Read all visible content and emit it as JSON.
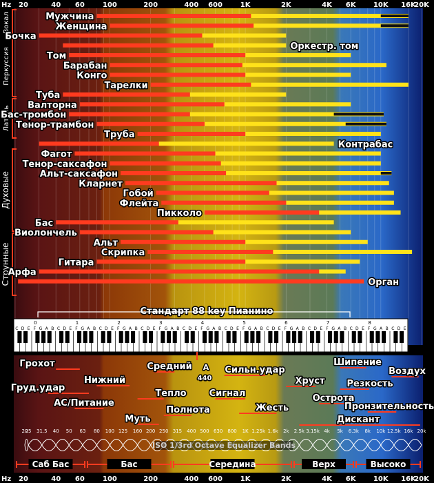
{
  "top_axis": {
    "unit": "Hz",
    "ticks": [
      "20",
      "40",
      "60",
      "100",
      "200",
      "400",
      "600",
      "1K",
      "2K",
      "4K",
      "6K",
      "10K",
      "16K",
      "20K"
    ]
  },
  "group_labels": [
    "Вокал",
    "Перкуссия",
    "Латунь",
    "Духовые",
    "Струнные"
  ],
  "instruments": [
    {
      "name": "Мужчина",
      "lo": 80,
      "hi": 1100,
      "hh": 16000,
      "hhlo": 10000
    },
    {
      "name": "Женщина",
      "lo": 100,
      "hi": 1150,
      "hh": 16000,
      "hhlo": 10000
    },
    {
      "name": "Бочка",
      "lo": 30,
      "hi": 480,
      "hh": 2000,
      "hhlo": 0
    },
    {
      "name": "Оркестр. том",
      "lo": 45,
      "hi": 580,
      "hh": 2000,
      "hhlo": 0
    },
    {
      "name": "Том",
      "lo": 50,
      "hi": 1000,
      "hh": 6000,
      "hhlo": 0
    },
    {
      "name": "Барабан",
      "lo": 100,
      "hi": 950,
      "hh": 11000,
      "hhlo": 0
    },
    {
      "name": "Конго",
      "lo": 100,
      "hi": 1000,
      "hh": 6000,
      "hhlo": 0
    },
    {
      "name": "Тарелки",
      "lo": 200,
      "hi": 1100,
      "hh": 16000,
      "hhlo": 0
    },
    {
      "name": "Туба",
      "lo": 45,
      "hi": 390,
      "hh": 2000,
      "hhlo": 0
    },
    {
      "name": "Валторна",
      "lo": 60,
      "hi": 700,
      "hh": 6000,
      "hhlo": 0
    },
    {
      "name": "Бас-тромбон",
      "lo": 50,
      "hi": 390,
      "hh": 10500,
      "hhlo": 4500
    },
    {
      "name": "Тенор-трамбон",
      "lo": 80,
      "hi": 500,
      "hh": 11000,
      "hhlo": 5500
    },
    {
      "name": "Труба",
      "lo": 160,
      "hi": 1000,
      "hh": 10000,
      "hhlo": 0
    },
    {
      "name": "Контрабас",
      "lo": 30,
      "hi": 230,
      "hh": 4500,
      "hhlo": 0
    },
    {
      "name": "Фагот",
      "lo": 55,
      "hi": 600,
      "hh": 10000,
      "hhlo": 0
    },
    {
      "name": "Тенор-саксафон",
      "lo": 100,
      "hi": 660,
      "hh": 10000,
      "hhlo": 0
    },
    {
      "name": "Альт-саксафон",
      "lo": 120,
      "hi": 720,
      "hh": 12000,
      "hhlo": 10000
    },
    {
      "name": "Кларнет",
      "lo": 130,
      "hi": 1700,
      "hh": 11500,
      "hhlo": 0
    },
    {
      "name": "Гобой",
      "lo": 220,
      "hi": 1500,
      "hh": 12500,
      "hhlo": 0
    },
    {
      "name": "Флейта",
      "lo": 240,
      "hi": 2000,
      "hh": 12500,
      "hhlo": 0
    },
    {
      "name": "Пикколо",
      "lo": 500,
      "hi": 3500,
      "hh": 14000,
      "hhlo": 0
    },
    {
      "name": "Бас",
      "lo": 40,
      "hi": 320,
      "hh": 4500,
      "hhlo": 0
    },
    {
      "name": "Виолончель",
      "lo": 60,
      "hi": 580,
      "hh": 6000,
      "hhlo": 0
    },
    {
      "name": "Альт",
      "lo": 120,
      "hi": 1000,
      "hh": 8000,
      "hhlo": 0
    },
    {
      "name": "Скрипка",
      "lo": 190,
      "hi": 1600,
      "hh": 17000,
      "hhlo": 0
    },
    {
      "name": "Гитара",
      "lo": 80,
      "hi": 1000,
      "hh": 7000,
      "hhlo": 0
    },
    {
      "name": "Арфа",
      "lo": 30,
      "hi": 3500,
      "hh": 5500,
      "hhlo": 0
    },
    {
      "name": "Орган",
      "lo": 21,
      "hi": 7500,
      "hh": 0,
      "hhlo": 0
    }
  ],
  "piano": {
    "title": "Стандарт  88 key Пианино",
    "octaves": [
      "0",
      "1",
      "2",
      "3",
      "4",
      "5",
      "6",
      "7",
      "8"
    ],
    "notes": [
      "C",
      "D",
      "E",
      "F",
      "G",
      "A",
      "B"
    ]
  },
  "descriptors": [
    {
      "text": "Грохот",
      "f": 50,
      "lo": 40,
      "hi": 60
    },
    {
      "text": "Нижний",
      "f": 100,
      "lo": 80,
      "hi": 140
    },
    {
      "text": "Груд.удар",
      "f": 45,
      "lo": 35,
      "hi": 70
    },
    {
      "text": "АС/Питание",
      "f": 70,
      "lo": 55,
      "hi": 90
    },
    {
      "text": "Тепло",
      "f": 200,
      "lo": 160,
      "hi": 250
    },
    {
      "text": "Средний",
      "f": 260,
      "lo": 210,
      "hi": 300
    },
    {
      "text": "A",
      "f": 440,
      "lo": 0,
      "hi": 0
    },
    {
      "text": "440",
      "f": 440,
      "lo": 0,
      "hi": 0
    },
    {
      "text": "Полнота",
      "f": 320,
      "lo": 250,
      "hi": 400
    },
    {
      "text": "Муть",
      "f": 180,
      "lo": 160,
      "hi": 230
    },
    {
      "text": "Сильн.удар",
      "f": 1000,
      "lo": 700,
      "hi": 1400
    },
    {
      "text": "Сигнал",
      "f": 800,
      "lo": 600,
      "hi": 1000
    },
    {
      "text": "Жесть",
      "f": 1200,
      "lo": 900,
      "hi": 1700
    },
    {
      "text": "Хруст",
      "f": 2700,
      "lo": 2000,
      "hi": 3300
    },
    {
      "text": "Шипение",
      "f": 6400,
      "lo": 5000,
      "hi": 7800
    },
    {
      "text": "Резкость",
      "f": 6500,
      "lo": 5000,
      "hi": 8200
    },
    {
      "text": "Воздух",
      "f": 16000,
      "lo": 12000,
      "hi": 19000
    },
    {
      "text": "Острота",
      "f": 4500,
      "lo": 3500,
      "hi": 5500
    },
    {
      "text": "Пронзительность",
      "f": 11000,
      "lo": 8000,
      "hi": 13000
    },
    {
      "text": "Дискант",
      "f": 6500,
      "lo": 2500,
      "hi": 19500
    }
  ],
  "eq": {
    "title": "ISO 1/3rd Octave Equalizer Bands",
    "bands": [
      "20",
      "25",
      "31.5",
      "40",
      "50",
      "63",
      "80",
      "100",
      "125",
      "160",
      "200",
      "250",
      "315",
      "400",
      "500",
      "630",
      "800",
      "1K",
      "1.25k",
      "1.6k",
      "2k",
      "2.5k",
      "3.15k",
      "4k",
      "5k",
      "6.3k",
      "8k",
      "10k",
      "12.5k",
      "16k",
      "20k"
    ]
  },
  "bottom_axis": {
    "unit": "Hz",
    "ticks": [
      "20",
      "40",
      "60",
      "100",
      "200",
      "400",
      "600",
      "1K",
      "2K",
      "4K",
      "6K",
      "10K",
      "16K",
      "20K"
    ]
  },
  "regions": [
    "Саб Бас",
    "Бас",
    "Середина",
    "Верх",
    "Высоко"
  ],
  "colors": {
    "red": "#ff3b1f",
    "yellow": "#ffe21a",
    "bg_sub": "#5a1414",
    "bg_bass": "#8c3808",
    "bg_mid": "#d4b411",
    "bg_upper": "#5b7a57",
    "bg_high": "#2a68c8",
    "bg_air": "#0b1f6e"
  }
}
